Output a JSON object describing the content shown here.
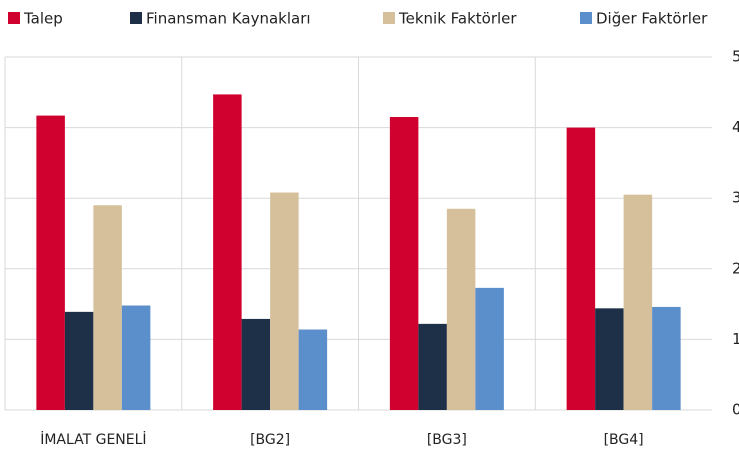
{
  "chart_data": {
    "type": "bar",
    "categories": [
      "İMALAT GENELİ",
      "[BG2]",
      "[BG3]",
      "[BG4]"
    ],
    "series": [
      {
        "name": "Talep",
        "color": "#d0002f",
        "values": [
          4.17,
          4.47,
          4.15,
          4.0
        ]
      },
      {
        "name": "Finansman Kaynakları",
        "color": "#1e3047",
        "values": [
          1.39,
          1.29,
          1.22,
          1.44
        ]
      },
      {
        "name": "Teknik Faktörler",
        "color": "#d6c09b",
        "values": [
          2.9,
          3.08,
          2.85,
          3.05
        ]
      },
      {
        "name": "Diğer Faktörler",
        "color": "#5b8fcb",
        "values": [
          1.48,
          1.14,
          1.73,
          1.46
        ]
      }
    ],
    "ylim": [
      0,
      5
    ],
    "yticks": [
      0,
      1,
      2,
      3,
      4,
      5
    ],
    "grid": true,
    "legend": "top"
  }
}
